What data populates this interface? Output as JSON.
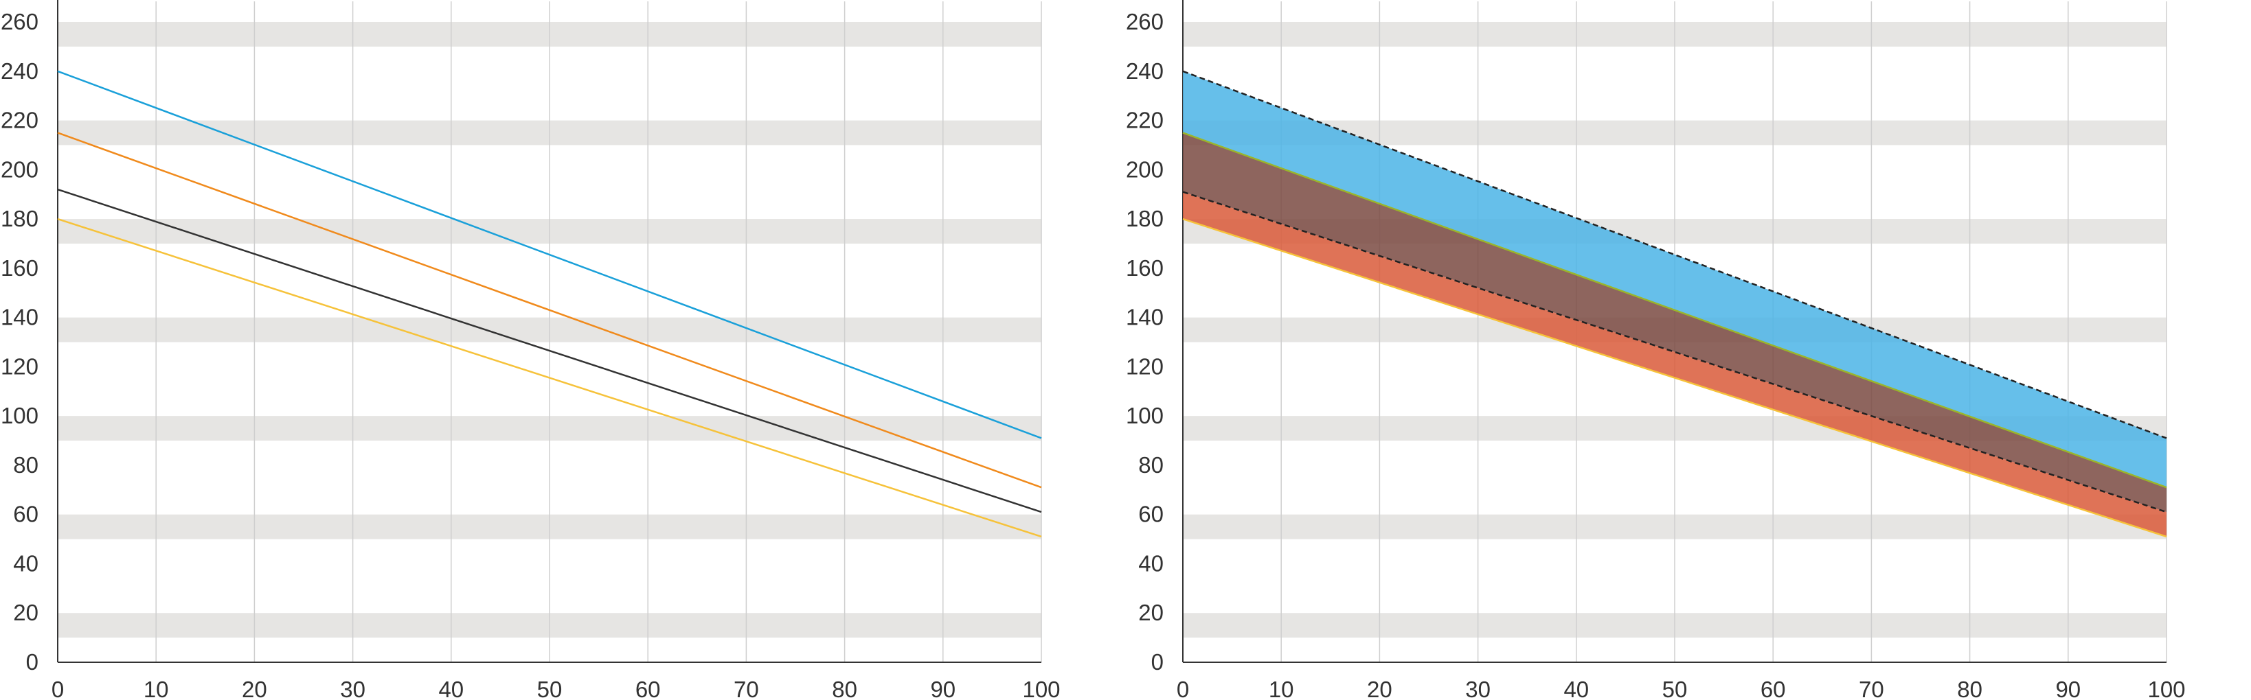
{
  "chart_data": [
    {
      "type": "line",
      "title": "",
      "xlabel": "",
      "ylabel": "",
      "xlim": [
        0,
        100
      ],
      "ylim": [
        0,
        260
      ],
      "x_ticks": [
        "0",
        "10",
        "20",
        "30",
        "40",
        "50",
        "60",
        "70",
        "80",
        "90",
        "100"
      ],
      "y_ticks": [
        "0",
        "20",
        "40",
        "60",
        "80",
        "100",
        "120",
        "140",
        "160",
        "180",
        "200",
        "220",
        "240",
        "260"
      ],
      "grid": "horizontal bands + vertical lines",
      "series": [
        {
          "color": "#1aa0d9",
          "x": [
            0,
            100
          ],
          "y": [
            240,
            91
          ]
        },
        {
          "color": "#f08a1c",
          "x": [
            0,
            100
          ],
          "y": [
            215,
            71
          ]
        },
        {
          "color": "#333333",
          "x": [
            0,
            100
          ],
          "y": [
            192,
            61
          ]
        },
        {
          "color": "#f6c23a",
          "x": [
            0,
            100
          ],
          "y": [
            180,
            51
          ]
        }
      ]
    },
    {
      "type": "area",
      "title": "",
      "xlabel": "",
      "ylabel": "",
      "xlim": [
        0,
        100
      ],
      "ylim": [
        0,
        260
      ],
      "x_ticks": [
        "0",
        "10",
        "20",
        "30",
        "40",
        "50",
        "60",
        "70",
        "80",
        "90",
        "100"
      ],
      "y_ticks": [
        "0",
        "20",
        "40",
        "60",
        "80",
        "100",
        "120",
        "140",
        "160",
        "180",
        "200",
        "220",
        "240",
        "260"
      ],
      "grid": "horizontal bands + vertical lines",
      "bands": [
        {
          "color": "#4bb4e6",
          "x": [
            0,
            100
          ],
          "upper": [
            240,
            91
          ],
          "lower": [
            215,
            71
          ]
        },
        {
          "color": "#7a4a42",
          "x": [
            0,
            100
          ],
          "upper": [
            215,
            71
          ],
          "lower": [
            191,
            61
          ]
        },
        {
          "color": "#d95a3a",
          "x": [
            0,
            100
          ],
          "upper": [
            191,
            61
          ],
          "lower": [
            180,
            51
          ]
        }
      ],
      "lines": [
        {
          "style": "dashed",
          "color": "#222222",
          "x": [
            0,
            100
          ],
          "y": [
            240,
            91
          ]
        },
        {
          "style": "solid",
          "color": "#9ab52a",
          "x": [
            0,
            100
          ],
          "y": [
            215,
            71
          ]
        },
        {
          "style": "dashed",
          "color": "#222222",
          "x": [
            0,
            100
          ],
          "y": [
            191,
            61
          ]
        },
        {
          "style": "solid",
          "color": "#f6c23a",
          "x": [
            0,
            100
          ],
          "y": [
            180,
            51
          ]
        }
      ]
    }
  ],
  "colors": {
    "band": "#e6e5e3",
    "axis": "#333333",
    "vgrid": "#cfcfcf"
  }
}
